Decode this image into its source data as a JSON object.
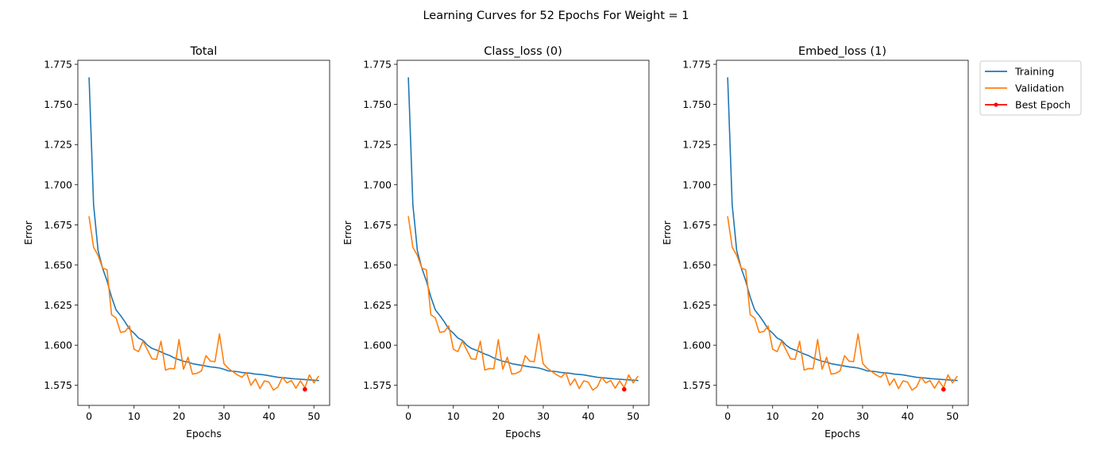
{
  "figure": {
    "title": "Learning Curves for 52 Epochs For Weight = 1"
  },
  "legend": {
    "placement": "upper-right-outside",
    "entries": [
      {
        "label": "Training",
        "color": "#1f77b4",
        "marker": "none"
      },
      {
        "label": "Validation",
        "color": "#ff7f0e",
        "marker": "none"
      },
      {
        "label": "Best Epoch",
        "color": "#ff0000",
        "marker": "dot"
      }
    ]
  },
  "chart_data": [
    {
      "type": "line",
      "title": "Total",
      "xlabel": "Epochs",
      "ylabel": "Error",
      "xlim": [
        -2.5,
        53.5
      ],
      "ylim": [
        1.5625,
        1.7775
      ],
      "xticks": [
        0,
        10,
        20,
        30,
        40,
        50
      ],
      "yticks": [
        1.575,
        1.6,
        1.625,
        1.65,
        1.675,
        1.7,
        1.725,
        1.75,
        1.775
      ],
      "ytick_labels": [
        "1.575",
        "1.600",
        "1.625",
        "1.650",
        "1.675",
        "1.700",
        "1.725",
        "1.750",
        "1.775"
      ],
      "x": [
        0,
        1,
        2,
        3,
        4,
        5,
        6,
        7,
        8,
        9,
        10,
        11,
        12,
        13,
        14,
        15,
        16,
        17,
        18,
        19,
        20,
        21,
        22,
        23,
        24,
        25,
        26,
        27,
        28,
        29,
        30,
        31,
        32,
        33,
        34,
        35,
        36,
        37,
        38,
        39,
        40,
        41,
        42,
        43,
        44,
        45,
        46,
        47,
        48,
        49,
        50,
        51
      ],
      "series": [
        {
          "name": "Training",
          "values": [
            1.7665,
            1.6875,
            1.659,
            1.648,
            1.64,
            1.63,
            1.622,
            1.6185,
            1.6145,
            1.61,
            1.6075,
            1.6045,
            1.603,
            1.6,
            1.598,
            1.597,
            1.5958,
            1.5945,
            1.5935,
            1.592,
            1.591,
            1.59,
            1.5895,
            1.5885,
            1.588,
            1.5875,
            1.587,
            1.5865,
            1.5862,
            1.5858,
            1.585,
            1.584,
            1.5838,
            1.5835,
            1.583,
            1.5828,
            1.5825,
            1.582,
            1.5818,
            1.5815,
            1.581,
            1.5805,
            1.58,
            1.5798,
            1.5795,
            1.5792,
            1.579,
            1.5788,
            1.5786,
            1.5784,
            1.5782,
            1.578
          ]
        },
        {
          "name": "Validation",
          "values": [
            1.68,
            1.661,
            1.656,
            1.648,
            1.647,
            1.619,
            1.617,
            1.608,
            1.6085,
            1.612,
            1.5975,
            1.596,
            1.6025,
            1.597,
            1.5915,
            1.5912,
            1.6025,
            1.5845,
            1.5855,
            1.5853,
            1.6035,
            1.585,
            1.5925,
            1.582,
            1.5825,
            1.584,
            1.5935,
            1.59,
            1.5898,
            1.607,
            1.5885,
            1.5855,
            1.5835,
            1.5815,
            1.58,
            1.583,
            1.575,
            1.579,
            1.573,
            1.5778,
            1.577,
            1.572,
            1.574,
            1.58,
            1.5765,
            1.578,
            1.5732,
            1.5778,
            1.5735,
            1.5815,
            1.5765,
            1.5805
          ]
        }
      ],
      "best_epoch": {
        "x": 48,
        "y": 1.5725
      }
    },
    {
      "type": "line",
      "title": "Class_loss (0)",
      "xlabel": "Epochs",
      "ylabel": "Error",
      "xlim": [
        -2.5,
        53.5
      ],
      "ylim": [
        1.5625,
        1.7775
      ],
      "xticks": [
        0,
        10,
        20,
        30,
        40,
        50
      ],
      "yticks": [
        1.575,
        1.6,
        1.625,
        1.65,
        1.675,
        1.7,
        1.725,
        1.75,
        1.775
      ],
      "ytick_labels": [
        "1.575",
        "1.600",
        "1.625",
        "1.650",
        "1.675",
        "1.700",
        "1.725",
        "1.750",
        "1.775"
      ],
      "x": [
        0,
        1,
        2,
        3,
        4,
        5,
        6,
        7,
        8,
        9,
        10,
        11,
        12,
        13,
        14,
        15,
        16,
        17,
        18,
        19,
        20,
        21,
        22,
        23,
        24,
        25,
        26,
        27,
        28,
        29,
        30,
        31,
        32,
        33,
        34,
        35,
        36,
        37,
        38,
        39,
        40,
        41,
        42,
        43,
        44,
        45,
        46,
        47,
        48,
        49,
        50,
        51
      ],
      "series": [
        {
          "name": "Training",
          "values": [
            1.7665,
            1.6875,
            1.659,
            1.648,
            1.64,
            1.63,
            1.622,
            1.6185,
            1.6145,
            1.61,
            1.6075,
            1.6045,
            1.603,
            1.6,
            1.598,
            1.597,
            1.5958,
            1.5945,
            1.5935,
            1.592,
            1.591,
            1.59,
            1.5895,
            1.5885,
            1.588,
            1.5875,
            1.587,
            1.5865,
            1.5862,
            1.5858,
            1.585,
            1.584,
            1.5838,
            1.5835,
            1.583,
            1.5828,
            1.5825,
            1.582,
            1.5818,
            1.5815,
            1.581,
            1.5805,
            1.58,
            1.5798,
            1.5795,
            1.5792,
            1.579,
            1.5788,
            1.5786,
            1.5784,
            1.5782,
            1.578
          ]
        },
        {
          "name": "Validation",
          "values": [
            1.68,
            1.661,
            1.656,
            1.648,
            1.647,
            1.619,
            1.617,
            1.608,
            1.6085,
            1.612,
            1.5975,
            1.596,
            1.6025,
            1.597,
            1.5915,
            1.5912,
            1.6025,
            1.5845,
            1.5855,
            1.5853,
            1.6035,
            1.585,
            1.5925,
            1.582,
            1.5825,
            1.584,
            1.5935,
            1.59,
            1.5898,
            1.607,
            1.5885,
            1.5855,
            1.5835,
            1.5815,
            1.58,
            1.583,
            1.575,
            1.579,
            1.573,
            1.5778,
            1.577,
            1.572,
            1.574,
            1.58,
            1.5765,
            1.578,
            1.5732,
            1.5778,
            1.5735,
            1.5815,
            1.5765,
            1.5805
          ]
        }
      ],
      "best_epoch": {
        "x": 48,
        "y": 1.5725
      }
    },
    {
      "type": "line",
      "title": "Embed_loss (1)",
      "xlabel": "Epochs",
      "ylabel": "Error",
      "xlim": [
        -2.5,
        53.5
      ],
      "ylim": [
        1.5625,
        1.7775
      ],
      "xticks": [
        0,
        10,
        20,
        30,
        40,
        50
      ],
      "yticks": [
        1.575,
        1.6,
        1.625,
        1.65,
        1.675,
        1.7,
        1.725,
        1.75,
        1.775
      ],
      "ytick_labels": [
        "1.575",
        "1.600",
        "1.625",
        "1.650",
        "1.675",
        "1.700",
        "1.725",
        "1.750",
        "1.775"
      ],
      "x": [
        0,
        1,
        2,
        3,
        4,
        5,
        6,
        7,
        8,
        9,
        10,
        11,
        12,
        13,
        14,
        15,
        16,
        17,
        18,
        19,
        20,
        21,
        22,
        23,
        24,
        25,
        26,
        27,
        28,
        29,
        30,
        31,
        32,
        33,
        34,
        35,
        36,
        37,
        38,
        39,
        40,
        41,
        42,
        43,
        44,
        45,
        46,
        47,
        48,
        49,
        50,
        51
      ],
      "series": [
        {
          "name": "Training",
          "values": [
            1.7665,
            1.6875,
            1.659,
            1.648,
            1.64,
            1.63,
            1.622,
            1.6185,
            1.6145,
            1.61,
            1.6075,
            1.6045,
            1.603,
            1.6,
            1.598,
            1.597,
            1.5958,
            1.5945,
            1.5935,
            1.592,
            1.591,
            1.59,
            1.5895,
            1.5885,
            1.588,
            1.5875,
            1.587,
            1.5865,
            1.5862,
            1.5858,
            1.585,
            1.584,
            1.5838,
            1.5835,
            1.583,
            1.5828,
            1.5825,
            1.582,
            1.5818,
            1.5815,
            1.581,
            1.5805,
            1.58,
            1.5798,
            1.5795,
            1.5792,
            1.579,
            1.5788,
            1.5786,
            1.5784,
            1.5782,
            1.578
          ]
        },
        {
          "name": "Validation",
          "values": [
            1.68,
            1.661,
            1.656,
            1.648,
            1.647,
            1.619,
            1.617,
            1.608,
            1.6085,
            1.612,
            1.5975,
            1.596,
            1.6025,
            1.597,
            1.5915,
            1.5912,
            1.6025,
            1.5845,
            1.5855,
            1.5853,
            1.6035,
            1.585,
            1.5925,
            1.582,
            1.5825,
            1.584,
            1.5935,
            1.59,
            1.5898,
            1.607,
            1.5885,
            1.5855,
            1.5835,
            1.5815,
            1.58,
            1.583,
            1.575,
            1.579,
            1.573,
            1.5778,
            1.577,
            1.572,
            1.574,
            1.58,
            1.5765,
            1.578,
            1.5732,
            1.5778,
            1.5735,
            1.5815,
            1.5765,
            1.5805
          ]
        }
      ],
      "best_epoch": {
        "x": 48,
        "y": 1.5725
      }
    }
  ]
}
